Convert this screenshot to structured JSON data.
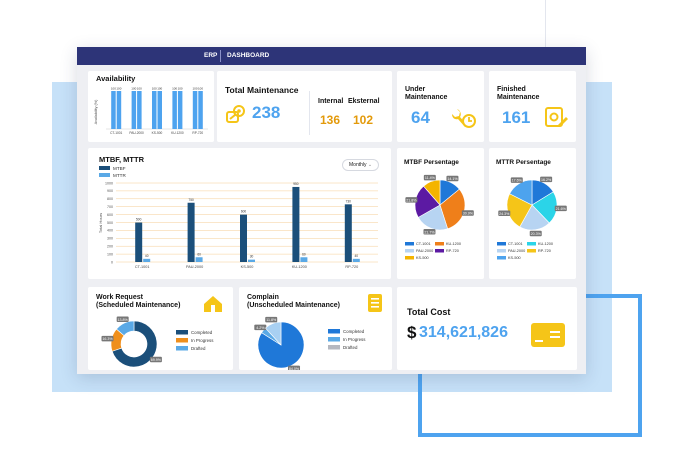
{
  "app": {
    "name": "ERP",
    "page": "DASHBOARD"
  },
  "colors": {
    "navy": "#1b4f7a",
    "blue": "#4ea3ef",
    "orange": "#ef8f1c",
    "yellow": "#f5c518",
    "green_accent": "#5aa9e6"
  },
  "availability": {
    "title": "Availability",
    "ylabel": "Availability (%)",
    "chart_data": {
      "type": "bar",
      "categories": [
        "CT-1001",
        "PAU-2000",
        "KS-500",
        "KU-1200",
        "RP-720"
      ],
      "series": [
        {
          "values": [
            100,
            100,
            100,
            100,
            100
          ]
        },
        {
          "values": [
            100,
            100,
            100,
            100,
            100
          ]
        }
      ],
      "data_labels": [
        "100",
        "100",
        "100",
        "100",
        "100",
        "100",
        "100",
        "100",
        "100",
        "100"
      ]
    }
  },
  "total_maintenance": {
    "title": "Total Maintenance",
    "value": "238",
    "internal_label": "Internal",
    "eksternal_label": "Eksternal",
    "internal_value": "136",
    "eksternal_value": "102"
  },
  "under_maintenance": {
    "title_line1": "Under",
    "title_line2": "Maintenance",
    "value": "64"
  },
  "finished_maintenance": {
    "title_line1": "Finished",
    "title_line2": "Maintenance",
    "value": "161"
  },
  "mtbf_mttr": {
    "title": "MTBF, MTTR",
    "dropdown": "Monthly",
    "legend": [
      "MTBF",
      "MTTR"
    ],
    "ylabel": "Total Hours",
    "chart_data": {
      "type": "bar",
      "categories": [
        "CT-1001",
        "PAU-2000",
        "KS-500",
        "KU-1200",
        "RP-720"
      ],
      "series": [
        {
          "name": "MTBF",
          "values": [
            500,
            750,
            600,
            950,
            730
          ]
        },
        {
          "name": "MTTR",
          "values": [
            40,
            60,
            30,
            60,
            40
          ]
        }
      ],
      "yticks": [
        "0",
        "100",
        "200",
        "300",
        "400",
        "500",
        "600",
        "700",
        "800",
        "900",
        "1000"
      ],
      "ylim": [
        0,
        1000
      ]
    }
  },
  "mtbf_pct": {
    "title": "MTBF Persentage",
    "chart_data": {
      "type": "pie",
      "labels": [
        "CT-1001",
        "KU-1200",
        "PAU-2000",
        "RP-720",
        "KS-500"
      ],
      "values": [
        14.1,
        30.9,
        21.7,
        21.8,
        11.4
      ],
      "colors": [
        "#1f78d8",
        "#ef7f1a",
        "#b7d4f2",
        "#5c1aa3",
        "#f4b400"
      ]
    }
  },
  "mttr_pct": {
    "title": "MTTR Persentage",
    "chart_data": {
      "type": "pie",
      "labels": [
        "CT-1001",
        "KU-1200",
        "PAU-2000",
        "RP-720",
        "KS-500"
      ],
      "values": [
        16.2,
        21.6,
        20.3,
        24.3,
        17.6
      ],
      "colors": [
        "#1f78d8",
        "#2bd4e8",
        "#b7d4f2",
        "#f5c518",
        "#4da3ee"
      ]
    }
  },
  "work_request": {
    "title_line1": "Work Request",
    "title_line2": "(Scheduled Maintenance)",
    "legend": [
      "Completed",
      "In Progress",
      "Drafted"
    ],
    "chart_data": {
      "type": "pie",
      "labels": [
        "Completed",
        "In Progress",
        "Drafted"
      ],
      "values": [
        69.9,
        16.3,
        13.8
      ]
    }
  },
  "complain": {
    "title_line1": "Complain",
    "title_line2": "(Unscheduled Maintenance)",
    "legend": [
      "Completed",
      "In Progress",
      "Drafted"
    ],
    "chart_data": {
      "type": "pie",
      "labels": [
        "Completed",
        "In Progress",
        "Drafted"
      ],
      "values": [
        84.0,
        4.2,
        11.8
      ]
    }
  },
  "total_cost": {
    "title": "Total Cost",
    "currency": "$",
    "value": "314,621,826"
  }
}
